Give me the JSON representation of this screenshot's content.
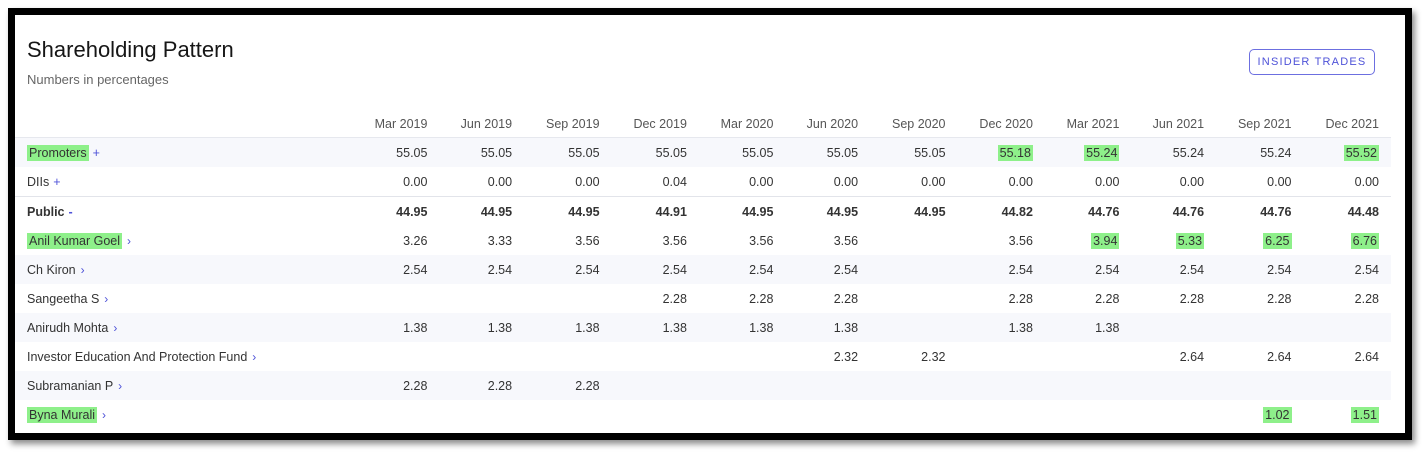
{
  "header": {
    "title": "Shareholding Pattern",
    "subtitle": "Numbers in percentages",
    "insider_button": "INSIDER TRADES"
  },
  "columns": [
    "Mar 2019",
    "Jun 2019",
    "Sep 2019",
    "Dec 2019",
    "Mar 2020",
    "Jun 2020",
    "Sep 2020",
    "Dec 2020",
    "Mar 2021",
    "Jun 2021",
    "Sep 2021",
    "Dec 2021"
  ],
  "highlight_color": "#8ef08a",
  "accent_color": "#4e52d8",
  "rows": [
    {
      "key": "promoters",
      "name": "Promoters",
      "toggle": "+",
      "name_highlight": true,
      "values": [
        "55.05",
        "55.05",
        "55.05",
        "55.05",
        "55.05",
        "55.05",
        "55.05",
        "55.18",
        "55.24",
        "55.24",
        "55.24",
        "55.52"
      ],
      "highlight": [
        7,
        8,
        11
      ]
    },
    {
      "key": "diis",
      "name": "DIIs",
      "toggle": "+",
      "name_highlight": false,
      "values": [
        "0.00",
        "0.00",
        "0.00",
        "0.04",
        "0.00",
        "0.00",
        "0.00",
        "0.00",
        "0.00",
        "0.00",
        "0.00",
        "0.00"
      ],
      "highlight": []
    },
    {
      "key": "public",
      "name": "Public",
      "toggle": "-",
      "name_highlight": false,
      "values": [
        "44.95",
        "44.95",
        "44.95",
        "44.91",
        "44.95",
        "44.95",
        "44.95",
        "44.82",
        "44.76",
        "44.76",
        "44.76",
        "44.48"
      ],
      "highlight": []
    },
    {
      "key": "anil",
      "name": "Anil Kumar Goel",
      "chevron": "›",
      "name_highlight": true,
      "values": [
        "3.26",
        "3.33",
        "3.56",
        "3.56",
        "3.56",
        "3.56",
        "",
        "3.56",
        "3.94",
        "5.33",
        "6.25",
        "6.76"
      ],
      "highlight": [
        8,
        9,
        10,
        11
      ]
    },
    {
      "key": "kiron",
      "name": "Ch Kiron",
      "chevron": "›",
      "name_highlight": false,
      "values": [
        "2.54",
        "2.54",
        "2.54",
        "2.54",
        "2.54",
        "2.54",
        "",
        "2.54",
        "2.54",
        "2.54",
        "2.54",
        "2.54"
      ],
      "highlight": []
    },
    {
      "key": "sangeetha",
      "name": "Sangeetha S",
      "chevron": "›",
      "name_highlight": false,
      "values": [
        "",
        "",
        "",
        "2.28",
        "2.28",
        "2.28",
        "",
        "2.28",
        "2.28",
        "2.28",
        "2.28",
        "2.28"
      ],
      "highlight": []
    },
    {
      "key": "anirudh",
      "name": "Anirudh Mohta",
      "chevron": "›",
      "name_highlight": false,
      "values": [
        "1.38",
        "1.38",
        "1.38",
        "1.38",
        "1.38",
        "1.38",
        "",
        "1.38",
        "1.38",
        "",
        "",
        ""
      ],
      "highlight": []
    },
    {
      "key": "iepf",
      "name": "Investor Education And Protection Fund",
      "chevron": "›",
      "name_highlight": false,
      "values": [
        "",
        "",
        "",
        "",
        "",
        "2.32",
        "2.32",
        "",
        "",
        "2.64",
        "2.64",
        "2.64"
      ],
      "highlight": []
    },
    {
      "key": "subramanian",
      "name": "Subramanian P",
      "chevron": "›",
      "name_highlight": false,
      "values": [
        "2.28",
        "2.28",
        "2.28",
        "",
        "",
        "",
        "",
        "",
        "",
        "",
        "",
        ""
      ],
      "highlight": []
    },
    {
      "key": "byna",
      "name": "Byna Murali",
      "chevron": "›",
      "name_highlight": true,
      "values": [
        "",
        "",
        "",
        "",
        "",
        "",
        "",
        "",
        "",
        "",
        "1.02",
        "1.51"
      ],
      "highlight": [
        10,
        11
      ]
    }
  ]
}
